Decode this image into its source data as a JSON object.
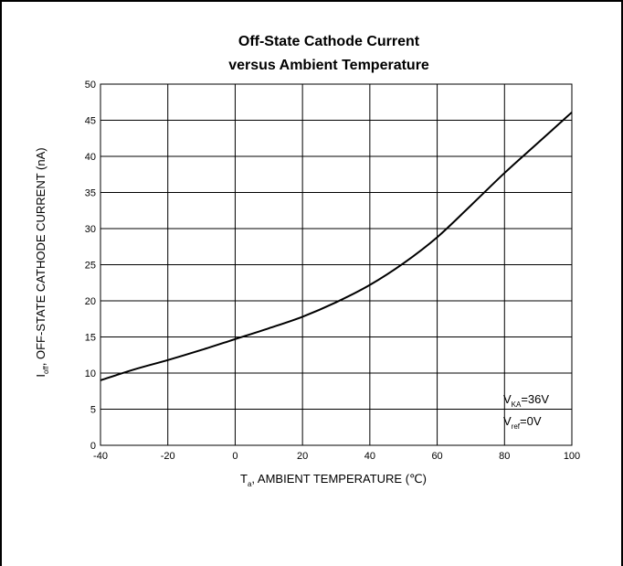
{
  "chart_data": {
    "type": "line",
    "title": [
      "Off-State Cathode Current",
      "versus Ambient Temperature"
    ],
    "xlabel": {
      "main": "T",
      "sub": "a",
      "rest": ", AMBIENT TEMPERATURE   (℃)"
    },
    "ylabel": {
      "main": "I",
      "sub": "off",
      "rest": ", OFF-STATE CATHODE CURRENT   (nA)"
    },
    "xlim": [
      -40,
      100
    ],
    "ylim": [
      0,
      50
    ],
    "x_ticks": [
      -40,
      -20,
      0,
      20,
      40,
      60,
      80,
      100
    ],
    "y_ticks": [
      0,
      5,
      10,
      15,
      20,
      25,
      30,
      35,
      40,
      45,
      50
    ],
    "grid": true,
    "series": [
      {
        "x": [
          -40,
          -30,
          -20,
          -10,
          0,
          10,
          20,
          30,
          40,
          50,
          60,
          70,
          80,
          90,
          100
        ],
        "y": [
          9,
          10.5,
          11.8,
          13.2,
          14.7,
          16.2,
          17.8,
          19.8,
          22.2,
          25.2,
          28.8,
          33.2,
          37.7,
          41.9,
          46.1
        ]
      }
    ],
    "annotations": [
      {
        "main": "V",
        "sub": "KA",
        "rest": "=36V"
      },
      {
        "main": "V",
        "sub": "ref",
        "rest": "=0V"
      }
    ]
  }
}
